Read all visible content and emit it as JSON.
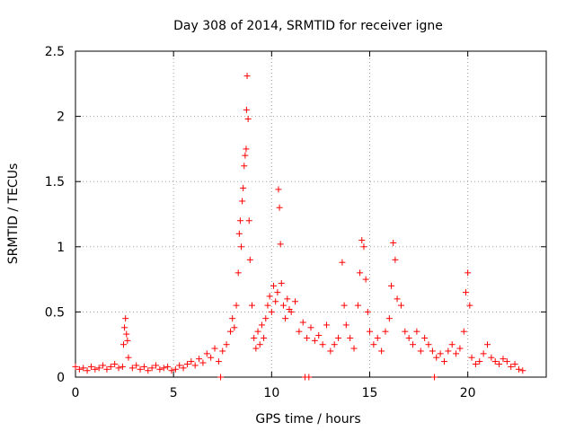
{
  "chart_data": {
    "type": "scatter",
    "title": "Day 308 of 2014, SRMTID for receiver igne",
    "xlabel": "GPS time / hours",
    "ylabel": "SRMTID / TECUs",
    "xlim": [
      0,
      24
    ],
    "ylim": [
      0,
      2.5
    ],
    "x_ticks": [
      0,
      5,
      10,
      15,
      20
    ],
    "x_tick_labels": [
      "0",
      "5",
      "10",
      "15",
      "20"
    ],
    "y_ticks": [
      0,
      0.5,
      1,
      1.5,
      2,
      2.5
    ],
    "y_tick_labels": [
      "0",
      "0.5",
      "1",
      "1.5",
      "2",
      "2.5"
    ],
    "grid": true,
    "marker": "+",
    "color": "#ff0000",
    "series": [
      {
        "name": "SRMTID",
        "points": [
          [
            0.0,
            0.08
          ],
          [
            0.2,
            0.06
          ],
          [
            0.4,
            0.07
          ],
          [
            0.6,
            0.05
          ],
          [
            0.8,
            0.08
          ],
          [
            1.0,
            0.06
          ],
          [
            1.2,
            0.07
          ],
          [
            1.4,
            0.09
          ],
          [
            1.6,
            0.06
          ],
          [
            1.8,
            0.08
          ],
          [
            2.0,
            0.1
          ],
          [
            2.2,
            0.07
          ],
          [
            2.4,
            0.08
          ],
          [
            2.45,
            0.25
          ],
          [
            2.5,
            0.38
          ],
          [
            2.55,
            0.45
          ],
          [
            2.6,
            0.33
          ],
          [
            2.65,
            0.28
          ],
          [
            2.7,
            0.15
          ],
          [
            2.9,
            0.07
          ],
          [
            3.1,
            0.09
          ],
          [
            3.3,
            0.06
          ],
          [
            3.5,
            0.08
          ],
          [
            3.7,
            0.05
          ],
          [
            3.9,
            0.07
          ],
          [
            4.1,
            0.09
          ],
          [
            4.3,
            0.06
          ],
          [
            4.5,
            0.07
          ],
          [
            4.7,
            0.08
          ],
          [
            4.9,
            0.05
          ],
          [
            5.1,
            0.06
          ],
          [
            5.3,
            0.09
          ],
          [
            5.5,
            0.07
          ],
          [
            5.7,
            0.1
          ],
          [
            5.9,
            0.12
          ],
          [
            6.1,
            0.09
          ],
          [
            6.3,
            0.14
          ],
          [
            6.5,
            0.11
          ],
          [
            6.7,
            0.18
          ],
          [
            6.9,
            0.15
          ],
          [
            7.1,
            0.22
          ],
          [
            7.3,
            0.12
          ],
          [
            7.5,
            0.2
          ],
          [
            7.7,
            0.25
          ],
          [
            7.9,
            0.35
          ],
          [
            8.0,
            0.45
          ],
          [
            8.1,
            0.38
          ],
          [
            8.2,
            0.55
          ],
          [
            8.3,
            0.8
          ],
          [
            8.35,
            1.1
          ],
          [
            8.4,
            1.2
          ],
          [
            8.45,
            1.0
          ],
          [
            8.5,
            1.35
          ],
          [
            8.55,
            1.45
          ],
          [
            8.6,
            1.62
          ],
          [
            8.65,
            1.7
          ],
          [
            8.7,
            1.75
          ],
          [
            8.72,
            2.05
          ],
          [
            8.75,
            2.31
          ],
          [
            8.8,
            1.98
          ],
          [
            8.85,
            1.2
          ],
          [
            8.9,
            0.9
          ],
          [
            9.0,
            0.55
          ],
          [
            9.1,
            0.3
          ],
          [
            9.2,
            0.22
          ],
          [
            9.3,
            0.35
          ],
          [
            9.4,
            0.25
          ],
          [
            9.5,
            0.4
          ],
          [
            9.6,
            0.3
          ],
          [
            9.7,
            0.45
          ],
          [
            9.8,
            0.55
          ],
          [
            9.9,
            0.62
          ],
          [
            10.0,
            0.5
          ],
          [
            10.1,
            0.7
          ],
          [
            10.2,
            0.58
          ],
          [
            10.3,
            0.65
          ],
          [
            10.35,
            1.44
          ],
          [
            10.4,
            1.3
          ],
          [
            10.45,
            1.02
          ],
          [
            10.5,
            0.72
          ],
          [
            10.6,
            0.55
          ],
          [
            10.7,
            0.45
          ],
          [
            10.8,
            0.6
          ],
          [
            10.9,
            0.52
          ],
          [
            11.0,
            0.5
          ],
          [
            11.2,
            0.58
          ],
          [
            11.4,
            0.35
          ],
          [
            11.6,
            0.42
          ],
          [
            11.8,
            0.3
          ],
          [
            12.0,
            0.38
          ],
          [
            12.2,
            0.28
          ],
          [
            12.4,
            0.32
          ],
          [
            12.6,
            0.25
          ],
          [
            12.8,
            0.4
          ],
          [
            13.0,
            0.2
          ],
          [
            13.2,
            0.25
          ],
          [
            13.4,
            0.3
          ],
          [
            13.6,
            0.88
          ],
          [
            13.7,
            0.55
          ],
          [
            13.8,
            0.4
          ],
          [
            14.0,
            0.3
          ],
          [
            14.2,
            0.22
          ],
          [
            14.4,
            0.55
          ],
          [
            14.5,
            0.8
          ],
          [
            14.6,
            1.05
          ],
          [
            14.7,
            1.0
          ],
          [
            14.8,
            0.75
          ],
          [
            14.9,
            0.5
          ],
          [
            15.0,
            0.35
          ],
          [
            15.2,
            0.25
          ],
          [
            15.4,
            0.3
          ],
          [
            15.6,
            0.2
          ],
          [
            15.8,
            0.35
          ],
          [
            16.0,
            0.45
          ],
          [
            16.1,
            0.7
          ],
          [
            16.2,
            1.03
          ],
          [
            16.3,
            0.9
          ],
          [
            16.4,
            0.6
          ],
          [
            16.6,
            0.55
          ],
          [
            16.8,
            0.35
          ],
          [
            17.0,
            0.3
          ],
          [
            17.2,
            0.25
          ],
          [
            17.4,
            0.35
          ],
          [
            17.6,
            0.2
          ],
          [
            17.8,
            0.3
          ],
          [
            18.0,
            0.25
          ],
          [
            18.2,
            0.2
          ],
          [
            18.4,
            0.15
          ],
          [
            18.6,
            0.18
          ],
          [
            18.8,
            0.12
          ],
          [
            19.0,
            0.2
          ],
          [
            19.2,
            0.25
          ],
          [
            19.4,
            0.18
          ],
          [
            19.6,
            0.22
          ],
          [
            19.8,
            0.35
          ],
          [
            19.9,
            0.65
          ],
          [
            20.0,
            0.8
          ],
          [
            20.1,
            0.55
          ],
          [
            20.2,
            0.15
          ],
          [
            20.4,
            0.1
          ],
          [
            20.6,
            0.12
          ],
          [
            20.8,
            0.18
          ],
          [
            21.0,
            0.25
          ],
          [
            21.2,
            0.15
          ],
          [
            21.4,
            0.12
          ],
          [
            21.6,
            0.1
          ],
          [
            21.8,
            0.14
          ],
          [
            22.0,
            0.12
          ],
          [
            22.2,
            0.08
          ],
          [
            22.4,
            0.1
          ],
          [
            22.6,
            0.06
          ],
          [
            22.8,
            0.05
          ],
          [
            7.4,
            0.0
          ],
          [
            11.7,
            0.0
          ],
          [
            11.9,
            0.0
          ],
          [
            18.3,
            0.0
          ]
        ]
      }
    ]
  }
}
